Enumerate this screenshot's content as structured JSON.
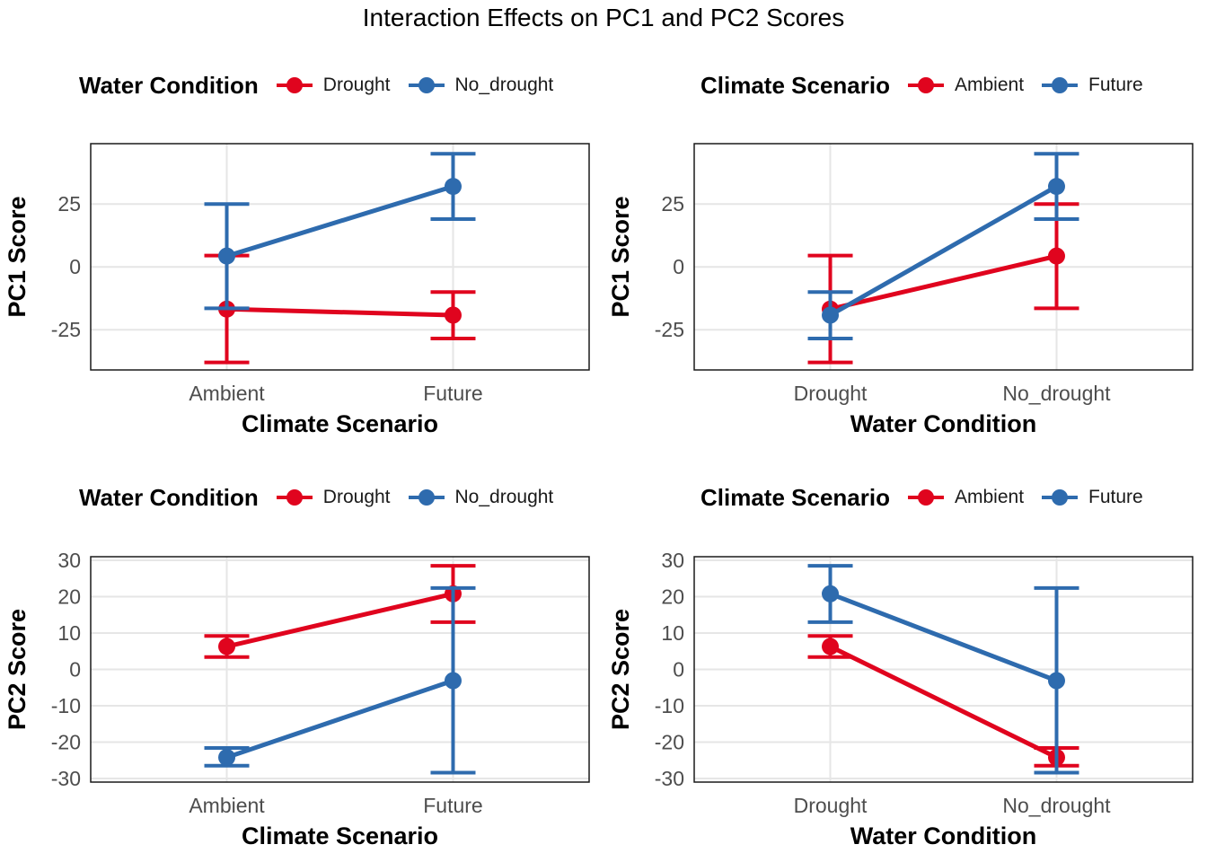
{
  "title": "Interaction Effects on PC1 and PC2 Scores",
  "colors": {
    "red": "#E0041E",
    "blue": "#2E6BAE",
    "grid": "#E6E6E6",
    "tick_text": "#4D4D4D"
  },
  "chart_data": [
    {
      "type": "line",
      "xlabel": "Climate Scenario",
      "ylabel": "PC1 Score",
      "categories": [
        "Ambient",
        "Future"
      ],
      "ylim": [
        -41,
        49
      ],
      "yticks": [
        -25,
        0,
        25
      ],
      "ytick_labels": [
        "-25",
        "0",
        "25"
      ],
      "grid": true,
      "legend": {
        "title": "Water Condition",
        "position": "top"
      },
      "series": [
        {
          "name": "Drought",
          "color": "#E0041E",
          "values": [
            -16.8,
            -19.2
          ],
          "lower": [
            -38.0,
            -28.5
          ],
          "upper": [
            4.5,
            -10.0
          ]
        },
        {
          "name": "No_drought",
          "color": "#2E6BAE",
          "values": [
            4.3,
            32.0
          ],
          "lower": [
            -16.5,
            19.0
          ],
          "upper": [
            25.0,
            45.0
          ]
        }
      ]
    },
    {
      "type": "line",
      "xlabel": "Water Condition",
      "ylabel": "PC1 Score",
      "categories": [
        "Drought",
        "No_drought"
      ],
      "ylim": [
        -41,
        49
      ],
      "yticks": [
        -25,
        0,
        25
      ],
      "ytick_labels": [
        "-25",
        "0",
        "25"
      ],
      "grid": true,
      "legend": {
        "title": "Climate Scenario",
        "position": "top"
      },
      "series": [
        {
          "name": "Ambient",
          "color": "#E0041E",
          "values": [
            -16.8,
            4.3
          ],
          "lower": [
            -38.0,
            -16.5
          ],
          "upper": [
            4.5,
            25.0
          ]
        },
        {
          "name": "Future",
          "color": "#2E6BAE",
          "values": [
            -19.2,
            32.0
          ],
          "lower": [
            -28.5,
            19.0
          ],
          "upper": [
            -10.0,
            45.0
          ]
        }
      ]
    },
    {
      "type": "line",
      "xlabel": "Climate Scenario",
      "ylabel": "PC2 Score",
      "categories": [
        "Ambient",
        "Future"
      ],
      "ylim": [
        -31,
        31
      ],
      "yticks": [
        -30,
        -20,
        -10,
        0,
        10,
        20,
        30
      ],
      "ytick_labels": [
        "-30",
        "-20",
        "-10",
        "0",
        "10",
        "20",
        "30"
      ],
      "grid": true,
      "legend": {
        "title": "Water Condition",
        "position": "top"
      },
      "series": [
        {
          "name": "Drought",
          "color": "#E0041E",
          "values": [
            6.3,
            20.8
          ],
          "lower": [
            3.4,
            13.0
          ],
          "upper": [
            9.2,
            28.5
          ]
        },
        {
          "name": "No_drought",
          "color": "#2E6BAE",
          "values": [
            -24.2,
            -3.1
          ],
          "lower": [
            -26.5,
            -28.4
          ],
          "upper": [
            -21.6,
            22.4
          ]
        }
      ]
    },
    {
      "type": "line",
      "xlabel": "Water Condition",
      "ylabel": "PC2 Score",
      "categories": [
        "Drought",
        "No_drought"
      ],
      "ylim": [
        -31,
        31
      ],
      "yticks": [
        -30,
        -20,
        -10,
        0,
        10,
        20,
        30
      ],
      "ytick_labels": [
        "-30",
        "-20",
        "-10",
        "0",
        "10",
        "20",
        "30"
      ],
      "grid": true,
      "legend": {
        "title": "Climate Scenario",
        "position": "top"
      },
      "series": [
        {
          "name": "Ambient",
          "color": "#E0041E",
          "values": [
            6.3,
            -24.2
          ],
          "lower": [
            3.4,
            -26.5
          ],
          "upper": [
            9.2,
            -21.6
          ]
        },
        {
          "name": "Future",
          "color": "#2E6BAE",
          "values": [
            20.8,
            -3.1
          ],
          "lower": [
            13.0,
            -28.4
          ],
          "upper": [
            28.5,
            22.4
          ]
        }
      ]
    }
  ]
}
